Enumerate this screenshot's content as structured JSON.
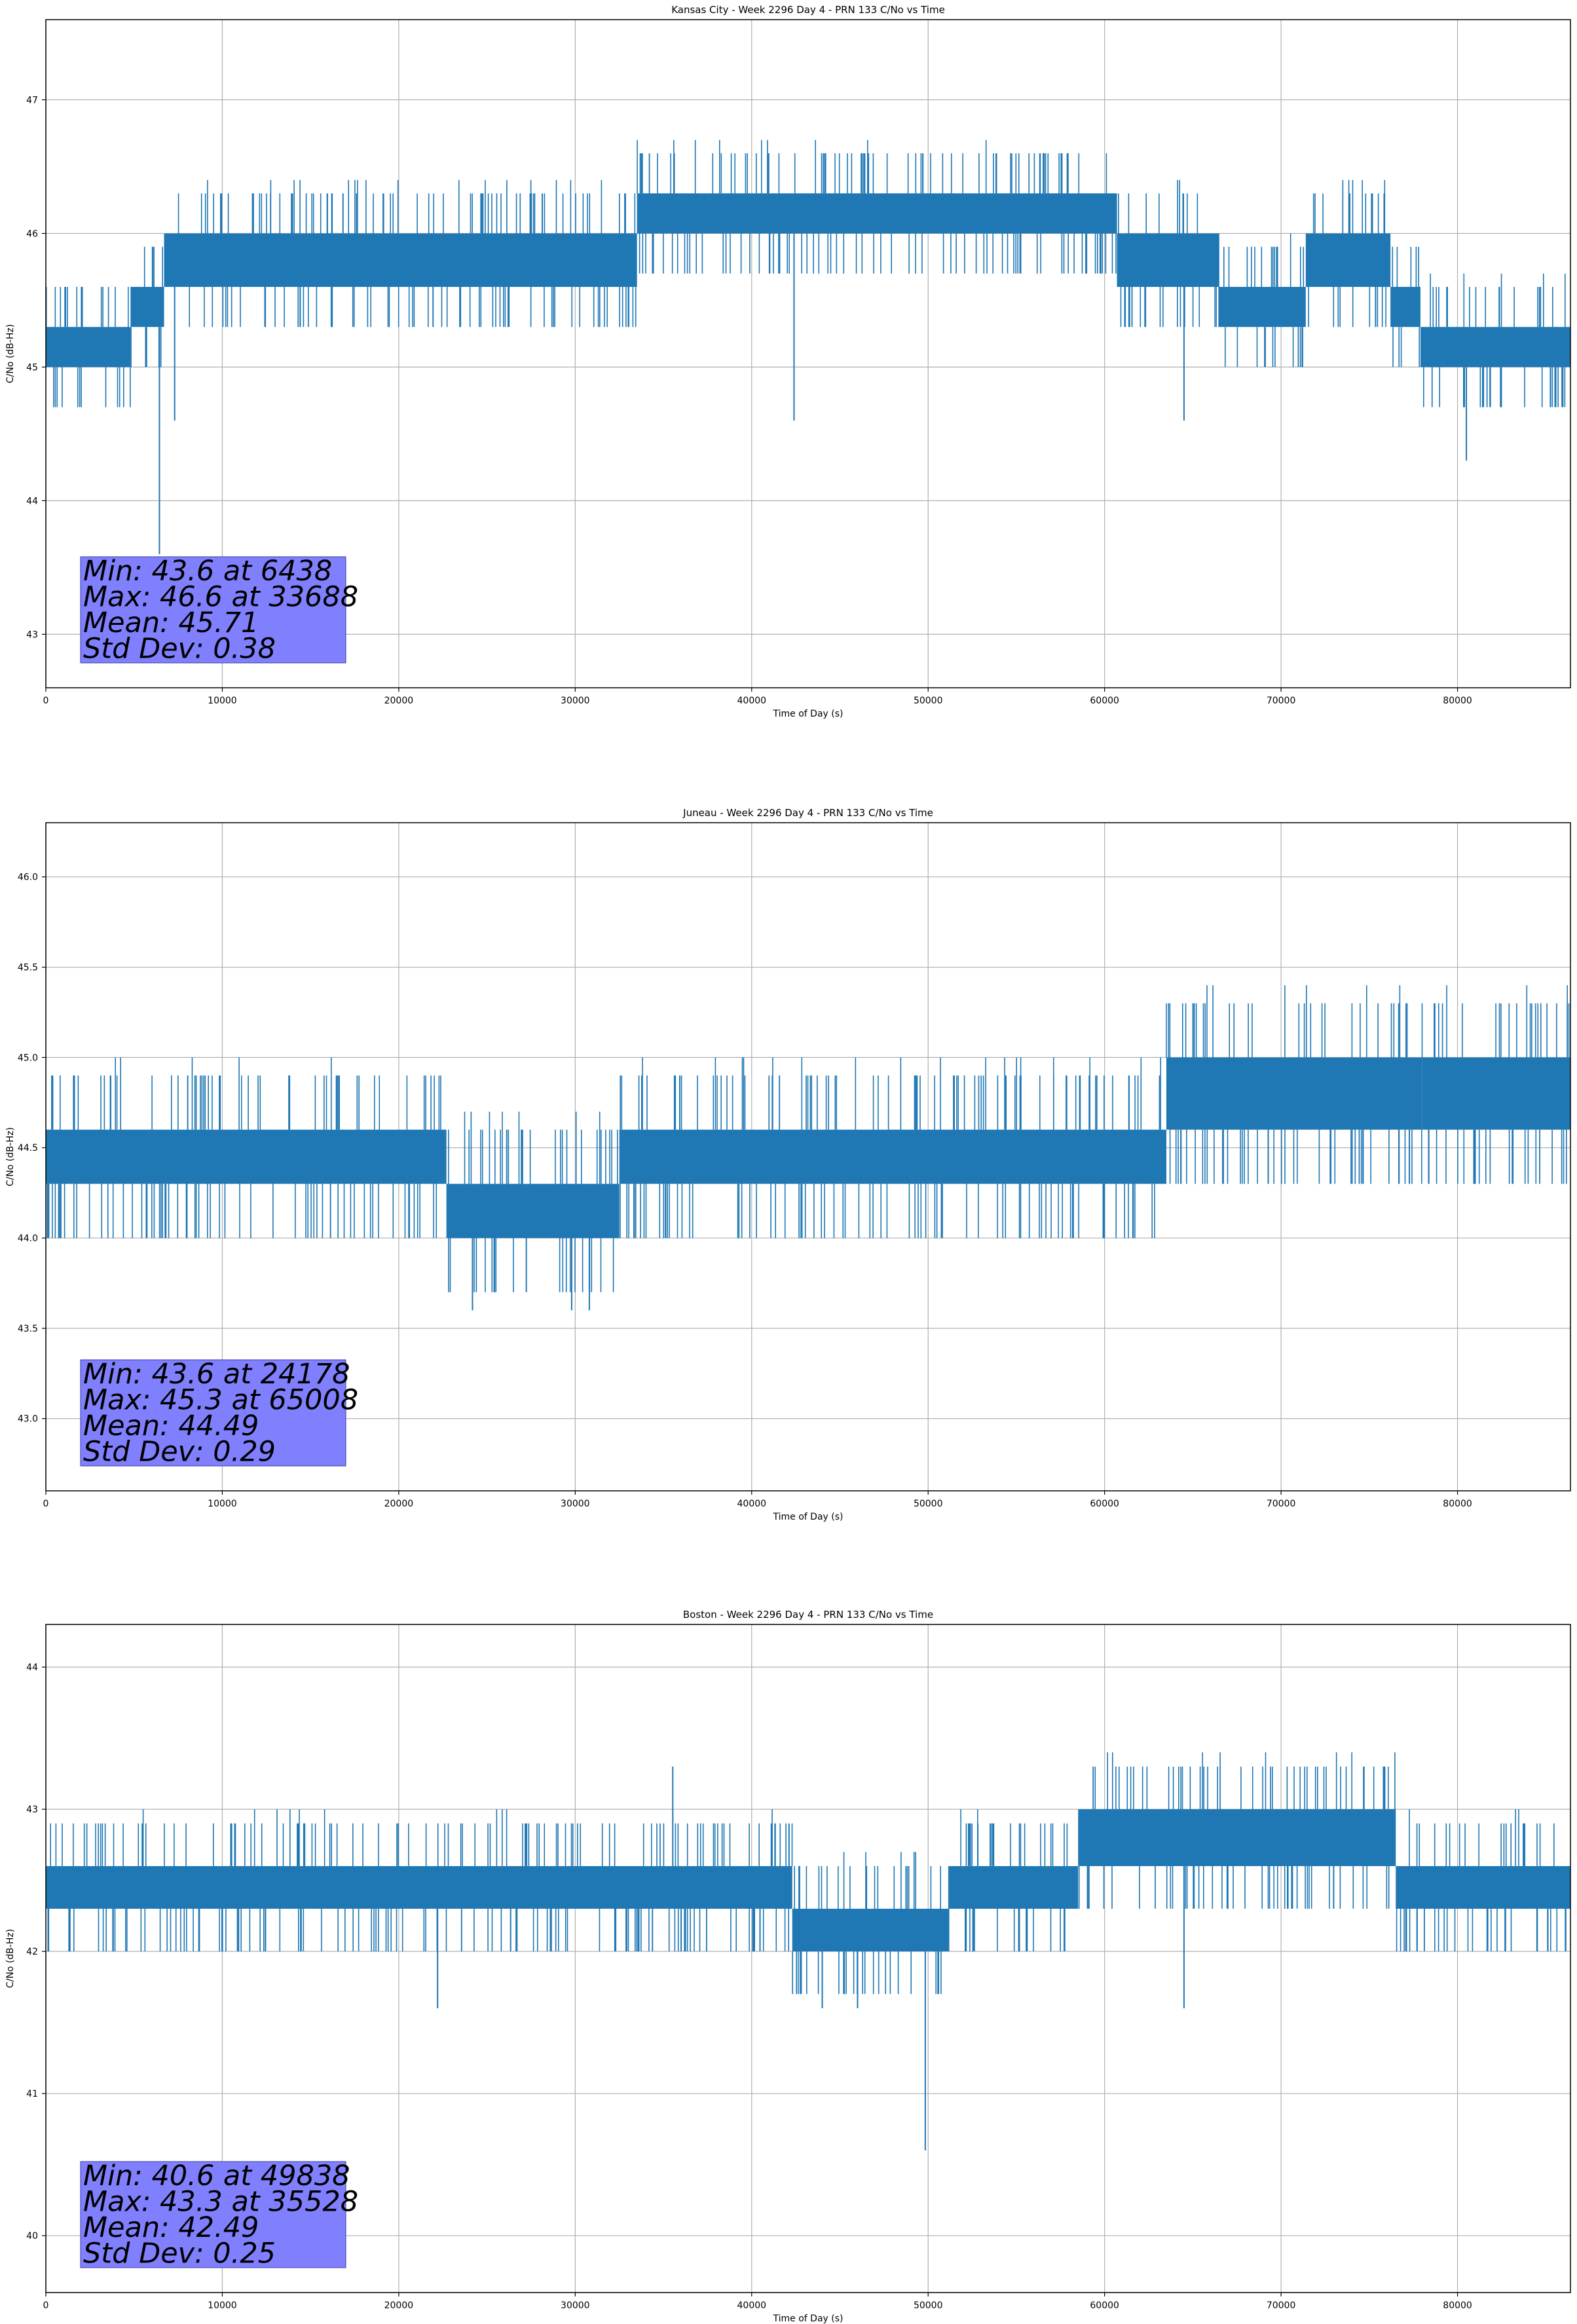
{
  "chart_data": [
    {
      "type": "line",
      "title": "Kansas City - Week 2296 Day 4 - PRN 133 C/No vs Time",
      "xlabel": "Time of Day (s)",
      "ylabel": "C/No (dB-Hz)",
      "xlim": [
        0,
        86400
      ],
      "ylim": [
        42.6,
        47.6
      ],
      "xticks": [
        0,
        10000,
        20000,
        30000,
        40000,
        50000,
        60000,
        70000,
        80000
      ],
      "yticks": [
        43,
        44,
        45,
        46,
        47
      ],
      "ytick_labels": [
        "43",
        "44",
        "45",
        "46",
        "47"
      ],
      "grid": true,
      "line_color": "#1f77b4",
      "band_segments": [
        {
          "x0": 0,
          "x1": 4800,
          "lo": 45.0,
          "hi": 45.3
        },
        {
          "x0": 4800,
          "x1": 6700,
          "lo": 45.3,
          "hi": 45.6
        },
        {
          "x0": 6700,
          "x1": 33500,
          "lo": 45.6,
          "hi": 46.0
        },
        {
          "x0": 33500,
          "x1": 60700,
          "lo": 46.0,
          "hi": 46.3
        },
        {
          "x0": 60700,
          "x1": 66500,
          "lo": 45.6,
          "hi": 46.0
        },
        {
          "x0": 66500,
          "x1": 71400,
          "lo": 45.3,
          "hi": 45.6
        },
        {
          "x0": 71400,
          "x1": 76200,
          "lo": 45.6,
          "hi": 46.0
        },
        {
          "x0": 76200,
          "x1": 77900,
          "lo": 45.3,
          "hi": 45.6
        },
        {
          "x0": 77900,
          "x1": 86400,
          "lo": 45.0,
          "hi": 45.3
        }
      ],
      "spikes": [
        [
          6438,
          43.6
        ],
        [
          42400,
          44.6
        ],
        [
          64500,
          44.6
        ],
        [
          33688,
          46.6
        ],
        [
          80500,
          44.3
        ],
        [
          7300,
          44.6
        ]
      ],
      "stats": {
        "min": "Min: 43.6 at 6438",
        "max": "Max: 46.6 at 33688",
        "mean": "Mean: 45.71",
        "std": "Std Dev: 0.38"
      },
      "stats_color": "#8080ff"
    },
    {
      "type": "line",
      "title": "Juneau - Week 2296 Day 4 - PRN 133 C/No vs Time",
      "xlabel": "Time of Day (s)",
      "ylabel": "C/No (dB-Hz)",
      "xlim": [
        0,
        86400
      ],
      "ylim": [
        42.6,
        46.3
      ],
      "xticks": [
        0,
        10000,
        20000,
        30000,
        40000,
        50000,
        60000,
        70000,
        80000
      ],
      "yticks": [
        43.0,
        43.5,
        44.0,
        44.5,
        45.0,
        45.5,
        46.0
      ],
      "ytick_labels": [
        "43.0",
        "43.5",
        "44.0",
        "44.5",
        "45.0",
        "45.5",
        "46.0"
      ],
      "grid": true,
      "line_color": "#1f77b4",
      "band_segments": [
        {
          "x0": 0,
          "x1": 22700,
          "lo": 44.3,
          "hi": 44.6
        },
        {
          "x0": 22700,
          "x1": 32500,
          "lo": 44.0,
          "hi": 44.3
        },
        {
          "x0": 32500,
          "x1": 63500,
          "lo": 44.3,
          "hi": 44.6
        },
        {
          "x0": 63500,
          "x1": 78000,
          "lo": 44.6,
          "hi": 45.0
        },
        {
          "x0": 78000,
          "x1": 86400,
          "lo": 44.6,
          "hi": 45.0
        }
      ],
      "spikes": [
        [
          24178,
          43.6
        ],
        [
          65008,
          45.3
        ],
        [
          29800,
          43.6
        ],
        [
          30800,
          43.6
        ],
        [
          81000,
          44.3
        ]
      ],
      "stats": {
        "min": "Min: 43.6 at 24178",
        "max": "Max: 45.3 at 65008",
        "mean": "Mean: 44.49",
        "std": "Std Dev: 0.29"
      },
      "stats_color": "#8080ff"
    },
    {
      "type": "line",
      "title": "Boston - Week 2296 Day 4 - PRN 133 C/No vs Time",
      "xlabel": "Time of Day (s)",
      "ylabel": "C/No (dB-Hz)",
      "xlim": [
        0,
        86400
      ],
      "ylim": [
        39.6,
        44.3
      ],
      "xticks": [
        0,
        10000,
        20000,
        30000,
        40000,
        50000,
        60000,
        70000,
        80000
      ],
      "yticks": [
        40,
        41,
        42,
        43,
        44
      ],
      "ytick_labels": [
        "40",
        "41",
        "42",
        "43",
        "44"
      ],
      "grid": true,
      "line_color": "#1f77b4",
      "band_segments": [
        {
          "x0": 0,
          "x1": 42300,
          "lo": 42.3,
          "hi": 42.6
        },
        {
          "x0": 42300,
          "x1": 51200,
          "lo": 42.0,
          "hi": 42.3
        },
        {
          "x0": 51200,
          "x1": 58500,
          "lo": 42.3,
          "hi": 42.6
        },
        {
          "x0": 58500,
          "x1": 76500,
          "lo": 42.6,
          "hi": 43.0
        },
        {
          "x0": 76500,
          "x1": 86400,
          "lo": 42.3,
          "hi": 42.6
        }
      ],
      "spikes": [
        [
          49838,
          40.6
        ],
        [
          35528,
          43.3
        ],
        [
          22200,
          41.6
        ],
        [
          64500,
          41.6
        ],
        [
          44000,
          41.6
        ],
        [
          46000,
          41.6
        ]
      ],
      "stats": {
        "min": "Min: 40.6 at 49838",
        "max": "Max: 43.3 at 35528",
        "mean": "Mean: 42.49",
        "std": "Std Dev: 0.25"
      },
      "stats_color": "#8080ff"
    }
  ]
}
